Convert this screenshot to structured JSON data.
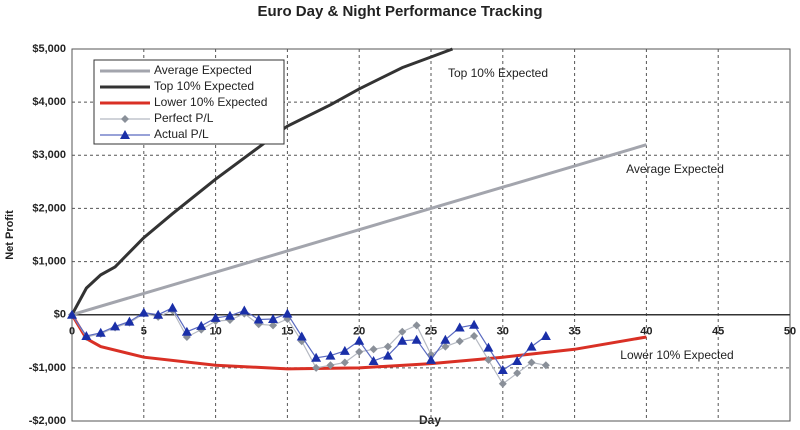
{
  "chart_data": {
    "type": "line",
    "title": "Euro Day & Night Performance Tracking",
    "xlabel": "Day",
    "ylabel": "Net Profit",
    "xlim": [
      0,
      50
    ],
    "ylim": [
      -2000,
      5000
    ],
    "xticks": [
      0,
      5,
      10,
      15,
      20,
      25,
      30,
      35,
      40,
      45,
      50
    ],
    "yticks": [
      {
        "value": -2000,
        "label": "-$2,000"
      },
      {
        "value": -1000,
        "label": "-$1,000"
      },
      {
        "value": 0,
        "label": "$0"
      },
      {
        "value": 1000,
        "label": "$1,000"
      },
      {
        "value": 2000,
        "label": "$2,000"
      },
      {
        "value": 3000,
        "label": "$3,000"
      },
      {
        "value": 4000,
        "label": "$4,000"
      },
      {
        "value": 5000,
        "label": "$5,000"
      }
    ],
    "grid": true,
    "legend": "upper left",
    "annotations": [
      "Top 10% Expected",
      "Average Expected",
      "Lower 10% Expected"
    ],
    "series": [
      {
        "name": "Average Expected",
        "color": "#a3a5ad",
        "marker": "none",
        "x": [
          0,
          40
        ],
        "values": [
          0,
          3200
        ]
      },
      {
        "name": "Top 10% Expected",
        "color": "#333333",
        "marker": "none",
        "x": [
          0,
          1,
          2,
          3,
          5,
          7,
          10,
          13,
          15,
          18,
          20,
          23,
          25,
          26.5
        ],
        "values": [
          0,
          500,
          750,
          900,
          1450,
          1900,
          2550,
          3150,
          3550,
          3950,
          4250,
          4650,
          4850,
          5000
        ]
      },
      {
        "name": "Lower 10% Expected",
        "color": "#d93025",
        "marker": "none",
        "x": [
          0,
          1,
          2,
          5,
          10,
          15,
          20,
          25,
          30,
          35,
          40
        ],
        "values": [
          0,
          -450,
          -600,
          -800,
          -950,
          -1020,
          -1000,
          -920,
          -800,
          -650,
          -420
        ]
      },
      {
        "name": "Perfect P/L",
        "color": "#8a9099",
        "marker": "diamond",
        "x": [
          0,
          1,
          2,
          3,
          4,
          5,
          6,
          7,
          8,
          9,
          10,
          11,
          12,
          13,
          14,
          15,
          16,
          17,
          18,
          19,
          20,
          21,
          22,
          23,
          24,
          25,
          26,
          27,
          28,
          29,
          30,
          31,
          32,
          33
        ],
        "values": [
          0,
          -420,
          -360,
          -240,
          -150,
          20,
          -40,
          80,
          -420,
          -280,
          -120,
          -100,
          20,
          -180,
          -200,
          -80,
          -500,
          -1000,
          -950,
          -900,
          -700,
          -650,
          -600,
          -320,
          -200,
          -750,
          -600,
          -500,
          -400,
          -850,
          -1300,
          -1100,
          -900,
          -950
        ]
      },
      {
        "name": "Actual P/L",
        "color": "#1a2fa8",
        "marker": "triangle",
        "x": [
          0,
          1,
          2,
          3,
          4,
          5,
          6,
          7,
          8,
          9,
          10,
          11,
          12,
          13,
          14,
          15,
          16,
          17,
          18,
          19,
          20,
          21,
          22,
          23,
          24,
          25,
          26,
          27,
          28,
          29,
          30,
          31,
          32,
          33
        ],
        "values": [
          0,
          -400,
          -340,
          -220,
          -130,
          40,
          0,
          130,
          -320,
          -210,
          -60,
          -20,
          80,
          -90,
          -80,
          20,
          -410,
          -810,
          -770,
          -680,
          -490,
          -870,
          -770,
          -490,
          -470,
          -850,
          -470,
          -240,
          -190,
          -620,
          -1040,
          -870,
          -600,
          -400
        ]
      }
    ]
  }
}
